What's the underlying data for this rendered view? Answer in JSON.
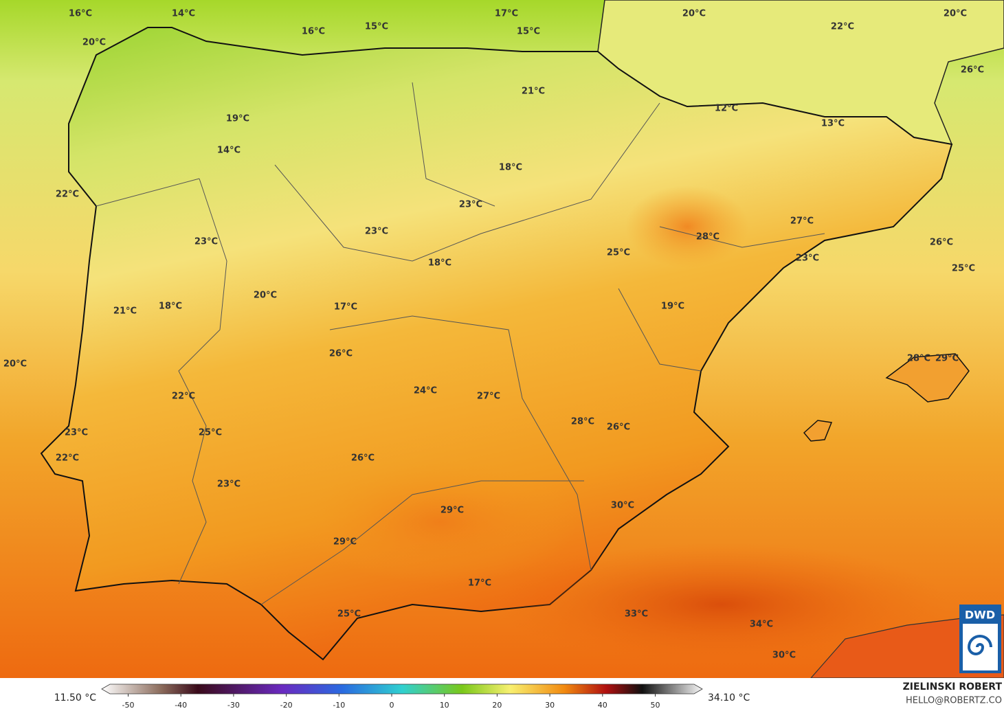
{
  "labels": [
    "16°C",
    "14°C",
    "17°C",
    "20°C",
    "20°C",
    "16°C",
    "15°C",
    "15°C",
    "22°C",
    "20°C",
    "26°C",
    "21°C",
    "19°C",
    "12°C",
    "13°C",
    "14°C",
    "18°C",
    "22°C",
    "23°C",
    "23°C",
    "27°C",
    "28°C",
    "23°C",
    "26°C",
    "25°C",
    "23°C",
    "18°C",
    "25°C",
    "20°C",
    "17°C",
    "19°C",
    "18°C",
    "21°C",
    "26°C",
    "20°C",
    "28°C",
    "29°C",
    "24°C",
    "27°C",
    "22°C",
    "28°C",
    "26°C",
    "25°C",
    "23°C",
    "22°C",
    "26°C",
    "23°C",
    "30°C",
    "29°C",
    "29°C",
    "17°C",
    "25°C",
    "33°C",
    "34°C",
    "30°C"
  ],
  "colorbar": {
    "min_label": "11.50 °C",
    "max_label": "34.10 °C",
    "ticks": [
      -50,
      -40,
      -30,
      -20,
      -10,
      0,
      10,
      20,
      30,
      40,
      50
    ]
  },
  "credit": {
    "name": "ZIELINSKI ROBERT",
    "email": "HELLO@ROBERTZ.CO"
  },
  "logo": "DWD"
}
